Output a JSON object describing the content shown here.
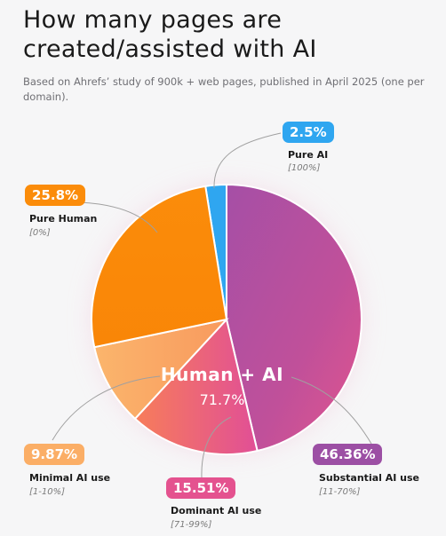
{
  "title": "How many pages are created/assisted with AI",
  "subtitle": "Based on Ahrefs’ study of 900k + web pages, published in April 2025 (one per domain).",
  "center": {
    "label": "Human + AI",
    "value": "71.7%"
  },
  "colors": {
    "pure_ai": "#2fa6f0",
    "pure_human": "#fb8c0a",
    "minimal": "#fbae66",
    "dominant": "#e4528f",
    "substantial": "#9c4fa4"
  },
  "chart_data": {
    "type": "pie",
    "title": "How many pages are created/assisted with AI",
    "slices": [
      {
        "key": "pure_ai",
        "name": "Pure AI",
        "range": "[100%]",
        "value": 2.5,
        "label": "2.5%"
      },
      {
        "key": "substantial",
        "name": "Substantial AI use",
        "range": "[11-70%]",
        "value": 46.36,
        "label": "46.36%"
      },
      {
        "key": "dominant",
        "name": "Dominant AI use",
        "range": "[71-99%]",
        "value": 15.51,
        "label": "15.51%"
      },
      {
        "key": "minimal",
        "name": "Minimal AI use",
        "range": "[1-10%]",
        "value": 9.87,
        "label": "9.87%"
      },
      {
        "key": "pure_human",
        "name": "Pure Human",
        "range": "[0%]",
        "value": 25.8,
        "label": "25.8%"
      }
    ]
  }
}
